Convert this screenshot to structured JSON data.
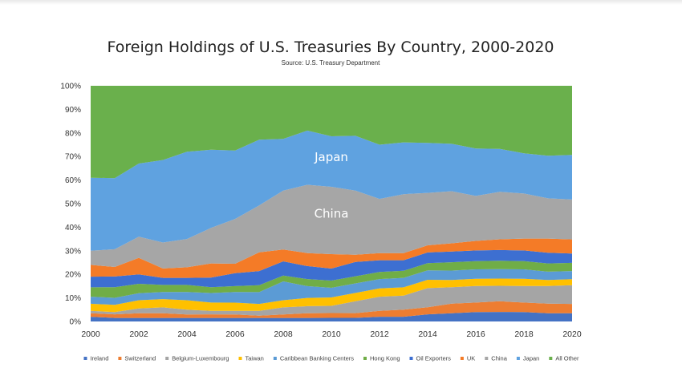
{
  "chart_data": {
    "type": "area",
    "stacked": true,
    "percent_stacked": true,
    "title": "Foreign Holdings of U.S. Treasuries By Country, 2000-2020",
    "subtitle": "Source: U.S. Treasury Department",
    "xlabel": "",
    "ylabel": "",
    "xlim": [
      2000,
      2020
    ],
    "ylim": [
      0,
      100
    ],
    "x_ticks": [
      "2000",
      "2002",
      "2004",
      "2006",
      "2008",
      "2010",
      "2012",
      "2014",
      "2016",
      "2018",
      "2020"
    ],
    "y_ticks": [
      "0%",
      "10%",
      "20%",
      "30%",
      "40%",
      "50%",
      "60%",
      "70%",
      "80%",
      "90%",
      "100%"
    ],
    "grid": false,
    "legend_position": "bottom",
    "x": [
      2000,
      2001,
      2002,
      2003,
      2004,
      2005,
      2006,
      2007,
      2008,
      2009,
      2010,
      2011,
      2012,
      2013,
      2014,
      2015,
      2016,
      2017,
      2018,
      2019,
      2020
    ],
    "series": [
      {
        "name": "Ireland",
        "color": "#4472c4",
        "values": [
          2,
          1.5,
          1.5,
          1.5,
          1.5,
          1.5,
          1.5,
          1.5,
          1.5,
          1.5,
          1.5,
          1.5,
          2,
          2,
          3,
          3.5,
          4,
          4,
          4,
          3.5,
          3.5
        ]
      },
      {
        "name": "Switzerland",
        "color": "#ed7d31",
        "values": [
          1.5,
          1.5,
          2,
          2,
          1.5,
          1.5,
          1.5,
          1,
          1.5,
          2,
          2,
          2,
          2.5,
          3,
          3,
          4,
          4,
          4.5,
          4,
          4,
          4
        ]
      },
      {
        "name": "Belgium-Luxembourg",
        "color": "#a5a5a5",
        "values": [
          1,
          1,
          2,
          2.5,
          2,
          1.5,
          1.5,
          2,
          3,
          3,
          3,
          5,
          6,
          6,
          8,
          7,
          7,
          6.5,
          7,
          7.5,
          8
        ]
      },
      {
        "name": "Taiwan",
        "color": "#ffc000",
        "values": [
          3,
          3,
          3.5,
          3.5,
          4,
          3.5,
          3.5,
          3,
          3,
          3.5,
          3.5,
          3.5,
          3.5,
          3.5,
          3.5,
          3,
          3,
          3,
          3,
          2.5,
          2.5
        ]
      },
      {
        "name": "Caribbean Banking Centers",
        "color": "#5b9bd5",
        "values": [
          3,
          3,
          3,
          3,
          3.5,
          4,
          4.5,
          5,
          8,
          5,
          4,
          4,
          4,
          4,
          4,
          4,
          4,
          4,
          4,
          3.5,
          3.5
        ]
      },
      {
        "name": "Hong Kong",
        "color": "#70ad47",
        "values": [
          4,
          4.5,
          4,
          3,
          3,
          2.5,
          2.5,
          3,
          2.5,
          3,
          3,
          3,
          3,
          3,
          3,
          3.5,
          3.5,
          3.5,
          3.5,
          3.5,
          3.5
        ]
      },
      {
        "name": "Oil Exporters",
        "color": "#3d6fd1",
        "values": [
          4.5,
          4.5,
          4,
          3,
          3,
          4,
          5.5,
          6,
          6,
          5.5,
          5,
          6,
          5,
          4.5,
          4.5,
          4.5,
          4.5,
          4.5,
          4.5,
          4.5,
          4
        ]
      },
      {
        "name": "UK",
        "color": "#f47b27",
        "values": [
          5,
          4,
          7,
          4,
          4.5,
          6,
          4,
          8,
          5,
          5.5,
          6,
          3,
          3,
          3,
          3,
          3.5,
          4,
          4.5,
          5,
          6,
          6
        ]
      },
      {
        "name": "China",
        "color": "#a6a6a6",
        "values": [
          6,
          7.5,
          9,
          11,
          12,
          15,
          19,
          20,
          25,
          29,
          28,
          27,
          23,
          25,
          22,
          22,
          19,
          20,
          19,
          17,
          17
        ]
      },
      {
        "name": "Japan",
        "color": "#5fa2e0",
        "values": [
          31,
          30,
          31,
          35,
          37,
          33,
          29,
          28,
          22,
          23,
          21,
          23,
          23,
          22,
          21,
          20,
          20,
          18,
          17,
          18,
          19
        ]
      },
      {
        "name": "All Other",
        "color": "#6ab04c",
        "values": [
          39,
          39,
          33,
          31.5,
          28,
          27,
          27.5,
          23,
          22.5,
          19,
          21,
          21,
          25,
          24,
          24,
          24.5,
          26.5,
          26.5,
          28.5,
          29.5,
          29.5
        ]
      }
    ],
    "annotations": [
      {
        "text": "Japan",
        "x": 2010,
        "y": 68
      },
      {
        "text": "China",
        "x": 2010,
        "y": 44
      }
    ]
  }
}
